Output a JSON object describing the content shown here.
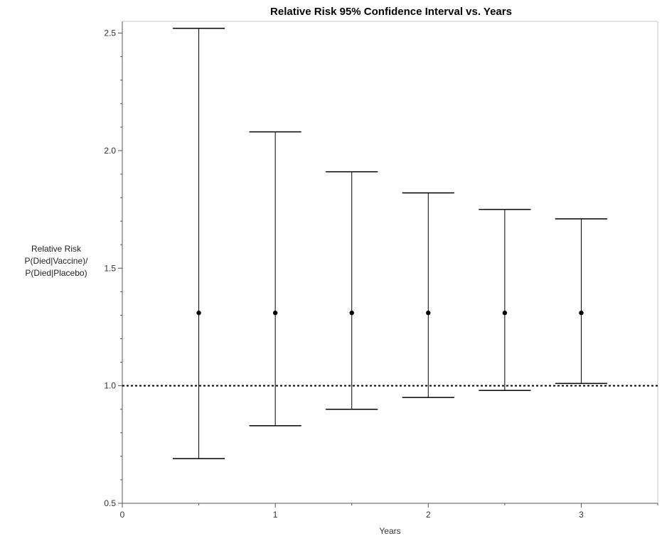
{
  "chart_data": {
    "type": "errorbar",
    "title": "Relative Risk 95% Confidence Interval vs. Years",
    "xlabel": "Years",
    "ylabel_lines": [
      "Relative Risk",
      "P(Died|Vaccine)/",
      "P(Died|Placebo)"
    ],
    "xlim": [
      0,
      3.5
    ],
    "ylim": [
      0.5,
      2.55
    ],
    "x_ticks": [
      "0",
      "1",
      "2",
      "3"
    ],
    "y_ticks": [
      "0.5",
      "1.0",
      "1.5",
      "2.0",
      "2.5"
    ],
    "reference_line": {
      "y": 1.0,
      "style": "dotted"
    },
    "grid": false,
    "series": [
      {
        "points": [
          {
            "x": 0.5,
            "estimate": 1.31,
            "lower": 0.69,
            "upper": 2.52
          },
          {
            "x": 1.0,
            "estimate": 1.31,
            "lower": 0.83,
            "upper": 2.08
          },
          {
            "x": 1.5,
            "estimate": 1.31,
            "lower": 0.9,
            "upper": 1.91
          },
          {
            "x": 2.0,
            "estimate": 1.31,
            "lower": 0.95,
            "upper": 1.82
          },
          {
            "x": 2.5,
            "estimate": 1.31,
            "lower": 0.98,
            "upper": 1.75
          },
          {
            "x": 3.0,
            "estimate": 1.31,
            "lower": 1.01,
            "upper": 1.71
          }
        ]
      }
    ],
    "colors": {
      "marks": "#000000",
      "axis": "#555555",
      "frame": "#c8c8c8"
    }
  }
}
